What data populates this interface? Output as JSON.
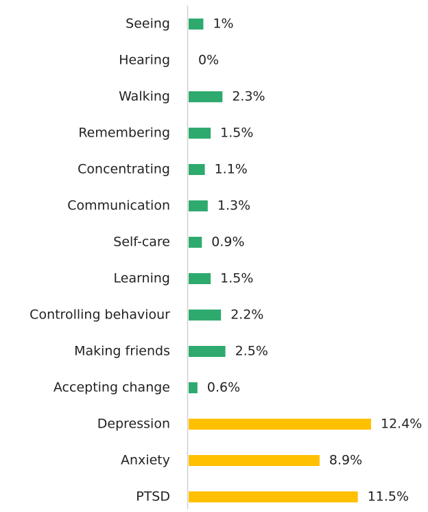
{
  "chart_data": {
    "type": "bar",
    "orientation": "horizontal",
    "categories": [
      "Seeing",
      "Hearing",
      "Walking",
      "Remembering",
      "Concentrating",
      "Communication",
      "Self-care",
      "Learning",
      "Controlling behaviour",
      "Making friends",
      "Accepting change",
      "Depression",
      "Anxiety",
      "PTSD"
    ],
    "values": [
      1,
      0,
      2.3,
      1.5,
      1.1,
      1.3,
      0.9,
      1.5,
      2.2,
      2.5,
      0.6,
      12.4,
      8.9,
      11.5
    ],
    "value_labels": [
      "1%",
      "0%",
      "2.3%",
      "1.5%",
      "1.1%",
      "1.3%",
      "0.9%",
      "1.5%",
      "2.2%",
      "2.5%",
      "0.6%",
      "12.4%",
      "8.9%",
      "11.5%"
    ],
    "colors": [
      "#2eaa6e",
      "#2eaa6e",
      "#2eaa6e",
      "#2eaa6e",
      "#2eaa6e",
      "#2eaa6e",
      "#2eaa6e",
      "#2eaa6e",
      "#2eaa6e",
      "#2eaa6e",
      "#2eaa6e",
      "#ffc000",
      "#ffc000",
      "#ffc000"
    ]
  }
}
